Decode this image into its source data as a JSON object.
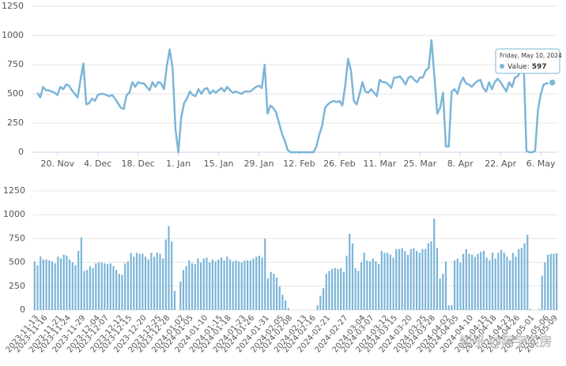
{
  "watermark": "知乎 @阿宇买房",
  "chart_data": [
    {
      "type": "line",
      "color": "#7cb5d8",
      "x": [
        "2023-11-13",
        "2023-11-14",
        "2023-11-15",
        "2023-11-16",
        "2023-11-17",
        "2023-11-18",
        "2023-11-19",
        "2023-11-20",
        "2023-11-21",
        "2023-11-22",
        "2023-11-23",
        "2023-11-24",
        "2023-11-25",
        "2023-11-26",
        "2023-11-27",
        "2023-11-28",
        "2023-11-29",
        "2023-11-30",
        "2023-12-01",
        "2023-12-02",
        "2023-12-03",
        "2023-12-04",
        "2023-12-05",
        "2023-12-06",
        "2023-12-07",
        "2023-12-08",
        "2023-12-09",
        "2023-12-10",
        "2023-12-11",
        "2023-12-12",
        "2023-12-13",
        "2023-12-14",
        "2023-12-15",
        "2023-12-16",
        "2023-12-17",
        "2023-12-18",
        "2023-12-19",
        "2023-12-20",
        "2023-12-21",
        "2023-12-22",
        "2023-12-23",
        "2023-12-24",
        "2023-12-25",
        "2023-12-26",
        "2023-12-27",
        "2023-12-28",
        "2023-12-29",
        "2023-12-30",
        "2023-12-31",
        "2024-01-01",
        "2024-01-02",
        "2024-01-03",
        "2024-01-04",
        "2024-01-05",
        "2024-01-06",
        "2024-01-07",
        "2024-01-08",
        "2024-01-09",
        "2024-01-10",
        "2024-01-11",
        "2024-01-12",
        "2024-01-13",
        "2024-01-14",
        "2024-01-15",
        "2024-01-16",
        "2024-01-17",
        "2024-01-18",
        "2024-01-19",
        "2024-01-20",
        "2024-01-21",
        "2024-01-22",
        "2024-01-23",
        "2024-01-24",
        "2024-01-25",
        "2024-01-26",
        "2024-01-27",
        "2024-01-28",
        "2024-01-29",
        "2024-01-30",
        "2024-01-31",
        "2024-02-01",
        "2024-02-02",
        "2024-02-03",
        "2024-02-04",
        "2024-02-05",
        "2024-02-06",
        "2024-02-07",
        "2024-02-08",
        "2024-02-09",
        "2024-02-10",
        "2024-02-11",
        "2024-02-12",
        "2024-02-13",
        "2024-02-14",
        "2024-02-15",
        "2024-02-16",
        "2024-02-17",
        "2024-02-18",
        "2024-02-19",
        "2024-02-20",
        "2024-02-21",
        "2024-02-22",
        "2024-02-23",
        "2024-02-24",
        "2024-02-25",
        "2024-02-26",
        "2024-02-27",
        "2024-02-28",
        "2024-02-29",
        "2024-03-01",
        "2024-03-02",
        "2024-03-03",
        "2024-03-04",
        "2024-03-05",
        "2024-03-06",
        "2024-03-07",
        "2024-03-08",
        "2024-03-09",
        "2024-03-10",
        "2024-03-11",
        "2024-03-12",
        "2024-03-13",
        "2024-03-14",
        "2024-03-15",
        "2024-03-16",
        "2024-03-17",
        "2024-03-18",
        "2024-03-19",
        "2024-03-20",
        "2024-03-21",
        "2024-03-22",
        "2024-03-23",
        "2024-03-24",
        "2024-03-25",
        "2024-03-26",
        "2024-03-27",
        "2024-03-28",
        "2024-03-29",
        "2024-03-30",
        "2024-03-31",
        "2024-04-01",
        "2024-04-02",
        "2024-04-03",
        "2024-04-04",
        "2024-04-05",
        "2024-04-06",
        "2024-04-07",
        "2024-04-08",
        "2024-04-09",
        "2024-04-10",
        "2024-04-11",
        "2024-04-12",
        "2024-04-13",
        "2024-04-14",
        "2024-04-15",
        "2024-04-16",
        "2024-04-17",
        "2024-04-18",
        "2024-04-19",
        "2024-04-20",
        "2024-04-21",
        "2024-04-22",
        "2024-04-23",
        "2024-04-24",
        "2024-04-25",
        "2024-04-26",
        "2024-04-27",
        "2024-04-28",
        "2024-04-29",
        "2024-04-30",
        "2024-05-01",
        "2024-05-02",
        "2024-05-03",
        "2024-05-04",
        "2024-05-05",
        "2024-05-06",
        "2024-05-07",
        "2024-05-08",
        "2024-05-09",
        "2024-05-10"
      ],
      "values": [
        510,
        470,
        560,
        530,
        530,
        520,
        510,
        490,
        560,
        540,
        580,
        570,
        530,
        500,
        470,
        620,
        760,
        410,
        420,
        460,
        440,
        490,
        500,
        500,
        490,
        480,
        490,
        460,
        420,
        380,
        370,
        490,
        510,
        600,
        560,
        600,
        590,
        590,
        560,
        530,
        600,
        560,
        600,
        590,
        540,
        740,
        880,
        720,
        200,
        0,
        300,
        420,
        460,
        520,
        490,
        480,
        540,
        500,
        540,
        550,
        500,
        530,
        510,
        530,
        550,
        520,
        560,
        530,
        510,
        520,
        510,
        500,
        520,
        520,
        520,
        540,
        560,
        570,
        550,
        750,
        330,
        400,
        380,
        340,
        250,
        160,
        100,
        20,
        0,
        0,
        0,
        0,
        0,
        0,
        0,
        0,
        0,
        50,
        150,
        230,
        380,
        410,
        430,
        440,
        430,
        440,
        400,
        570,
        800,
        700,
        440,
        410,
        500,
        600,
        520,
        510,
        540,
        510,
        480,
        620,
        600,
        600,
        580,
        550,
        640,
        640,
        650,
        620,
        580,
        640,
        650,
        620,
        600,
        640,
        640,
        700,
        720,
        960,
        650,
        330,
        380,
        510,
        50,
        50,
        520,
        540,
        500,
        590,
        640,
        590,
        580,
        560,
        590,
        610,
        620,
        550,
        520,
        600,
        540,
        600,
        630,
        600,
        560,
        520,
        600,
        560,
        640,
        650,
        700,
        790,
        10,
        0,
        0,
        10,
        360,
        500,
        580,
        590,
        590,
        597
      ],
      "xlim": [
        "2023-11-11",
        "2024-05-12"
      ],
      "xticks": [
        {
          "value": "2023-11-20",
          "label": "20. Nov"
        },
        {
          "value": "2023-12-04",
          "label": "4. Dec"
        },
        {
          "value": "2023-12-18",
          "label": "18. Dec"
        },
        {
          "value": "2024-01-01",
          "label": "1. Jan"
        },
        {
          "value": "2024-01-15",
          "label": "15. Jan"
        },
        {
          "value": "2024-01-29",
          "label": "29. Jan"
        },
        {
          "value": "2024-02-12",
          "label": "12. Feb"
        },
        {
          "value": "2024-02-26",
          "label": "26. Feb"
        },
        {
          "value": "2024-03-11",
          "label": "11. Mar"
        },
        {
          "value": "2024-03-25",
          "label": "25. Mar"
        },
        {
          "value": "2024-04-08",
          "label": "8. Apr"
        },
        {
          "value": "2024-04-22",
          "label": "22. Apr"
        },
        {
          "value": "2024-05-06",
          "label": "6. May"
        }
      ],
      "ylim": [
        0,
        1250
      ],
      "yticks": [
        0,
        250,
        500,
        750,
        1000,
        1250
      ],
      "grid": true,
      "tooltip": {
        "date": "Friday, May 10, 2024",
        "label": "Value:",
        "value": 597
      }
    },
    {
      "type": "bar",
      "color": "#7cb5d8",
      "categories": [
        "2023-11-13",
        null,
        null,
        "2023-11-16",
        null,
        null,
        null,
        null,
        "2023-11-21",
        null,
        null,
        "2023-11-24",
        null,
        null,
        null,
        null,
        "2023-11-29",
        null,
        null,
        null,
        null,
        "2023-12-04",
        null,
        null,
        "2023-12-07",
        null,
        null,
        null,
        null,
        "2023-12-12",
        null,
        null,
        "2023-12-15",
        null,
        null,
        null,
        null,
        "2023-12-20",
        null,
        null,
        null,
        null,
        "2023-12-25",
        null,
        null,
        "2023-12-28",
        null,
        null,
        null,
        null,
        "2024-01-02",
        null,
        null,
        "2024-01-05",
        null,
        null,
        null,
        null,
        "2024-01-10",
        null,
        null,
        null,
        null,
        "2024-01-15",
        null,
        null,
        "2024-01-18",
        null,
        null,
        null,
        null,
        "2024-01-23",
        null,
        null,
        "2024-01-26",
        null,
        null,
        null,
        null,
        "2024-01-31",
        null,
        null,
        null,
        null,
        "2024-02-05",
        null,
        null,
        "2024-02-08",
        null,
        null,
        null,
        null,
        "2024-02-13",
        null,
        null,
        "2024-02-16",
        null,
        null,
        null,
        null,
        "2024-02-21",
        null,
        null,
        null,
        null,
        null,
        "2024-02-27",
        null,
        null,
        null,
        null,
        null,
        "2024-03-04",
        null,
        null,
        "2024-03-07",
        null,
        null,
        null,
        null,
        "2024-03-12",
        null,
        null,
        "2024-03-15",
        null,
        null,
        null,
        null,
        "2024-03-20",
        null,
        null,
        null,
        null,
        "2024-03-25",
        null,
        null,
        "2024-03-28",
        null,
        null,
        null,
        null,
        "2024-04-02",
        null,
        null,
        "2024-04-05",
        null,
        null,
        null,
        null,
        "2024-04-10",
        null,
        null,
        null,
        null,
        "2024-04-15",
        null,
        null,
        "2024-04-18",
        null,
        null,
        null,
        null,
        "2024-04-23",
        null,
        null,
        "2024-04-26",
        null,
        null,
        null,
        null,
        "2024-05-01",
        null,
        null,
        null,
        null,
        "2024-05-06",
        null,
        null,
        "2024-05-09",
        null
      ],
      "values": [
        510,
        470,
        560,
        530,
        530,
        520,
        510,
        490,
        560,
        540,
        580,
        570,
        530,
        500,
        470,
        620,
        760,
        410,
        420,
        460,
        440,
        490,
        500,
        500,
        490,
        480,
        490,
        460,
        420,
        380,
        370,
        490,
        510,
        600,
        560,
        600,
        590,
        590,
        560,
        530,
        600,
        560,
        600,
        590,
        540,
        740,
        880,
        720,
        200,
        0,
        300,
        420,
        460,
        520,
        490,
        480,
        540,
        500,
        540,
        550,
        500,
        530,
        510,
        530,
        550,
        520,
        560,
        530,
        510,
        520,
        510,
        500,
        520,
        520,
        520,
        540,
        560,
        570,
        550,
        750,
        330,
        400,
        380,
        340,
        250,
        160,
        100,
        20,
        0,
        0,
        0,
        0,
        0,
        0,
        0,
        0,
        0,
        50,
        150,
        230,
        380,
        410,
        430,
        440,
        430,
        440,
        400,
        570,
        800,
        700,
        440,
        410,
        500,
        600,
        520,
        510,
        540,
        510,
        480,
        620,
        600,
        600,
        580,
        550,
        640,
        640,
        650,
        620,
        580,
        640,
        650,
        620,
        600,
        640,
        640,
        700,
        720,
        960,
        650,
        330,
        380,
        510,
        50,
        50,
        520,
        540,
        500,
        590,
        640,
        590,
        580,
        560,
        590,
        610,
        620,
        550,
        520,
        600,
        540,
        600,
        630,
        600,
        560,
        520,
        600,
        560,
        640,
        650,
        700,
        790,
        10,
        0,
        0,
        10,
        360,
        500,
        580,
        590,
        590,
        597
      ],
      "ylim": [
        0,
        1250
      ],
      "yticks": [
        0,
        250,
        500,
        750,
        1000,
        1250
      ],
      "grid": true
    }
  ]
}
